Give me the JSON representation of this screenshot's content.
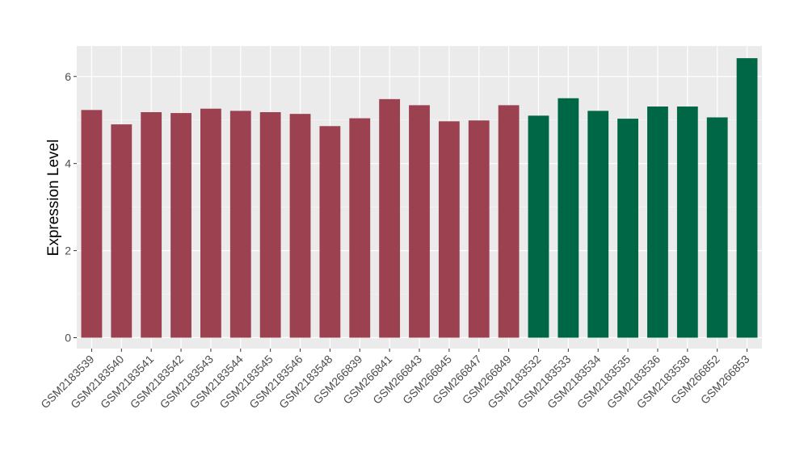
{
  "chart_data": {
    "type": "bar",
    "title": "",
    "xlabel": "",
    "ylabel": "Expression Level",
    "ylim": [
      -0.25,
      6.7
    ],
    "yticks": [
      0,
      2,
      4,
      6
    ],
    "grid": true,
    "background": "#ebebeb",
    "categories": [
      "GSM2183539",
      "GSM2183540",
      "GSM2183541",
      "GSM2183542",
      "GSM2183543",
      "GSM2183544",
      "GSM2183545",
      "GSM2183546",
      "GSM2183548",
      "GSM266839",
      "GSM266841",
      "GSM266843",
      "GSM266845",
      "GSM266847",
      "GSM266849",
      "GSM2183532",
      "GSM2183533",
      "GSM2183534",
      "GSM2183535",
      "GSM2183536",
      "GSM2183538",
      "GSM266852",
      "GSM266853"
    ],
    "values": [
      5.23,
      4.9,
      5.18,
      5.16,
      5.26,
      5.21,
      5.18,
      5.14,
      4.86,
      5.04,
      5.48,
      5.34,
      4.97,
      4.99,
      5.34,
      5.1,
      5.5,
      5.21,
      5.03,
      5.31,
      5.31,
      5.06,
      6.42
    ],
    "bar_colors": [
      "#9b4150",
      "#9b4150",
      "#9b4150",
      "#9b4150",
      "#9b4150",
      "#9b4150",
      "#9b4150",
      "#9b4150",
      "#9b4150",
      "#9b4150",
      "#9b4150",
      "#9b4150",
      "#9b4150",
      "#9b4150",
      "#9b4150",
      "#006746",
      "#006746",
      "#006746",
      "#006746",
      "#006746",
      "#006746",
      "#006746",
      "#006746"
    ]
  }
}
